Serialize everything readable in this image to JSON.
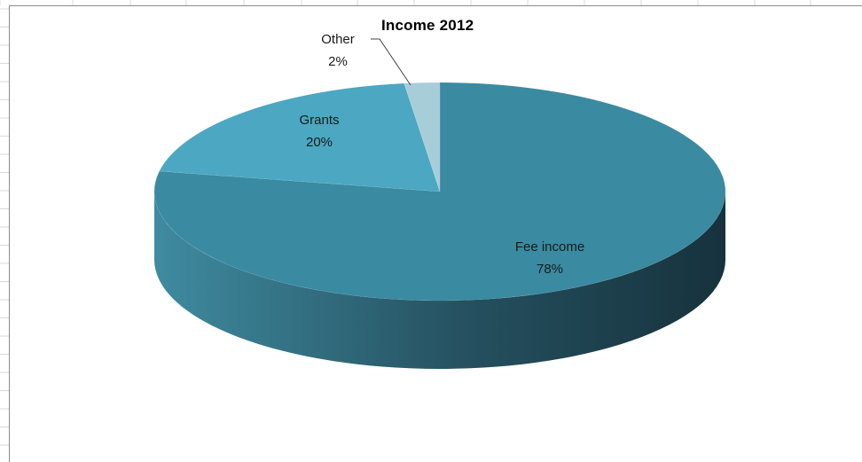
{
  "chart_data": {
    "type": "pie",
    "style": "3d",
    "title": "Income 2012",
    "slices": [
      {
        "label": "Fee income",
        "percent_label": "78%",
        "value": 78,
        "color": "#3a8aa1"
      },
      {
        "label": "Grants",
        "percent_label": "20%",
        "value": 20,
        "color": "#4ba7c2"
      },
      {
        "label": "Other",
        "percent_label": "2%",
        "value": 2,
        "color": "#a7cdd9"
      }
    ],
    "label_position": "inside",
    "leader_line_for": "Other",
    "legend": "none"
  },
  "colors": {
    "pie_side_light": "#3f8ba0",
    "pie_side_dark": "#16323d",
    "grid": "#d9d9d9",
    "chart_border": "#8c8c8c"
  }
}
